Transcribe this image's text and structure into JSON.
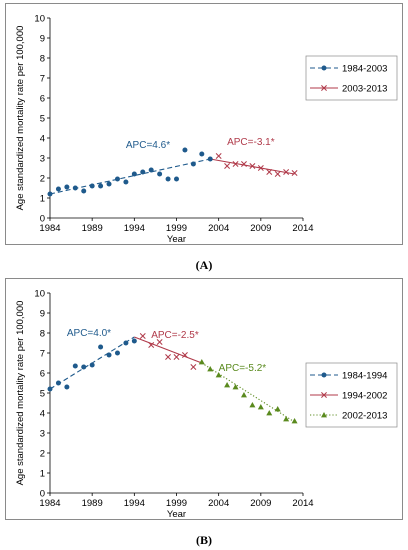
{
  "captions": [
    "(A)",
    "(B)"
  ],
  "colors": {
    "blue": "#1f5a8c",
    "red": "#b03a4a",
    "green": "#5a8a1e"
  },
  "chart_data": [
    {
      "type": "line",
      "title": "",
      "xlabel": "Year",
      "ylabel": "Age standardized mortality rate per 100,000",
      "xlim": [
        1984,
        2014
      ],
      "ylim": [
        0,
        10
      ],
      "xticks": [
        1984,
        1989,
        1994,
        1999,
        2004,
        2009,
        2014
      ],
      "yticks": [
        0,
        1,
        2,
        3,
        4,
        5,
        6,
        7,
        8,
        9,
        10
      ],
      "grid": false,
      "legend_position": "right",
      "observed": [
        {
          "name": "1984-2003",
          "marker": "circle",
          "x": [
            1984,
            1985,
            1986,
            1987,
            1988,
            1989,
            1990,
            1991,
            1992,
            1993,
            1994,
            1995,
            1996,
            1997,
            1998,
            1999,
            2000,
            2001,
            2002,
            2003
          ],
          "y": [
            1.2,
            1.45,
            1.55,
            1.5,
            1.35,
            1.6,
            1.6,
            1.7,
            1.95,
            1.8,
            2.2,
            2.3,
            2.4,
            2.2,
            1.95,
            1.95,
            3.4,
            2.7,
            3.2,
            2.95
          ]
        },
        {
          "name": "2003-2013",
          "marker": "x",
          "x": [
            2004,
            2005,
            2006,
            2007,
            2008,
            2009,
            2010,
            2011,
            2012,
            2013
          ],
          "y": [
            3.1,
            2.6,
            2.7,
            2.7,
            2.6,
            2.5,
            2.3,
            2.2,
            2.3,
            2.25
          ]
        }
      ],
      "series": [
        {
          "name": "1984-2003",
          "style": "dashed",
          "color": "#1f5a8c",
          "x": [
            1984,
            2003
          ],
          "y": [
            1.2,
            2.95
          ]
        },
        {
          "name": "2003-2013",
          "style": "solid",
          "color": "#b03a4a",
          "x": [
            2003,
            2013
          ],
          "y": [
            2.95,
            2.2
          ]
        }
      ],
      "annotations": [
        {
          "text": "APC=4.6*",
          "x": 1993,
          "y": 3.5,
          "color": "#1f5a8c"
        },
        {
          "text": "APC=-3.1*",
          "x": 2005,
          "y": 3.65,
          "color": "#b03a4a"
        }
      ]
    },
    {
      "type": "line",
      "title": "",
      "xlabel": "Year",
      "ylabel": "Age standardized mortality rate per 100,000",
      "xlim": [
        1984,
        2014
      ],
      "ylim": [
        0,
        10
      ],
      "xticks": [
        1984,
        1989,
        1994,
        1999,
        2004,
        2009,
        2014
      ],
      "yticks": [
        0,
        1,
        2,
        3,
        4,
        5,
        6,
        7,
        8,
        9,
        10
      ],
      "grid": false,
      "legend_position": "right",
      "observed": [
        {
          "name": "1984-1994",
          "marker": "circle",
          "x": [
            1984,
            1985,
            1986,
            1987,
            1988,
            1989,
            1990,
            1991,
            1992,
            1993,
            1994
          ],
          "y": [
            5.2,
            5.5,
            5.3,
            6.35,
            6.3,
            6.4,
            7.3,
            6.9,
            7.0,
            7.5,
            7.6
          ]
        },
        {
          "name": "1994-2002",
          "marker": "x",
          "x": [
            1995,
            1996,
            1997,
            1998,
            1999,
            2000,
            2001
          ],
          "y": [
            7.85,
            7.4,
            7.55,
            6.8,
            6.8,
            6.9,
            6.3
          ]
        },
        {
          "name": "2002-2013",
          "marker": "triangle",
          "x": [
            2002,
            2003,
            2004,
            2005,
            2006,
            2007,
            2008,
            2009,
            2010,
            2011,
            2012,
            2013
          ],
          "y": [
            6.55,
            6.2,
            5.9,
            5.4,
            5.3,
            4.9,
            4.4,
            4.3,
            4.0,
            4.2,
            3.7,
            3.6
          ]
        }
      ],
      "series": [
        {
          "name": "1984-1994",
          "style": "dashed",
          "color": "#1f5a8c",
          "x": [
            1984,
            1994
          ],
          "y": [
            5.2,
            7.8
          ]
        },
        {
          "name": "1994-2002",
          "style": "solid",
          "color": "#b03a4a",
          "x": [
            1994,
            2002
          ],
          "y": [
            7.8,
            6.5
          ]
        },
        {
          "name": "2002-2013",
          "style": "dotted",
          "color": "#5a8a1e",
          "x": [
            2002,
            2013
          ],
          "y": [
            6.5,
            3.55
          ]
        }
      ],
      "annotations": [
        {
          "text": "APC=4.0*",
          "x": 1986,
          "y": 7.85,
          "color": "#1f5a8c"
        },
        {
          "text": "APC=-2.5*",
          "x": 1996,
          "y": 7.75,
          "color": "#b03a4a"
        },
        {
          "text": "APC=-5.2*",
          "x": 2004,
          "y": 6.1,
          "color": "#5a8a1e"
        }
      ]
    }
  ]
}
